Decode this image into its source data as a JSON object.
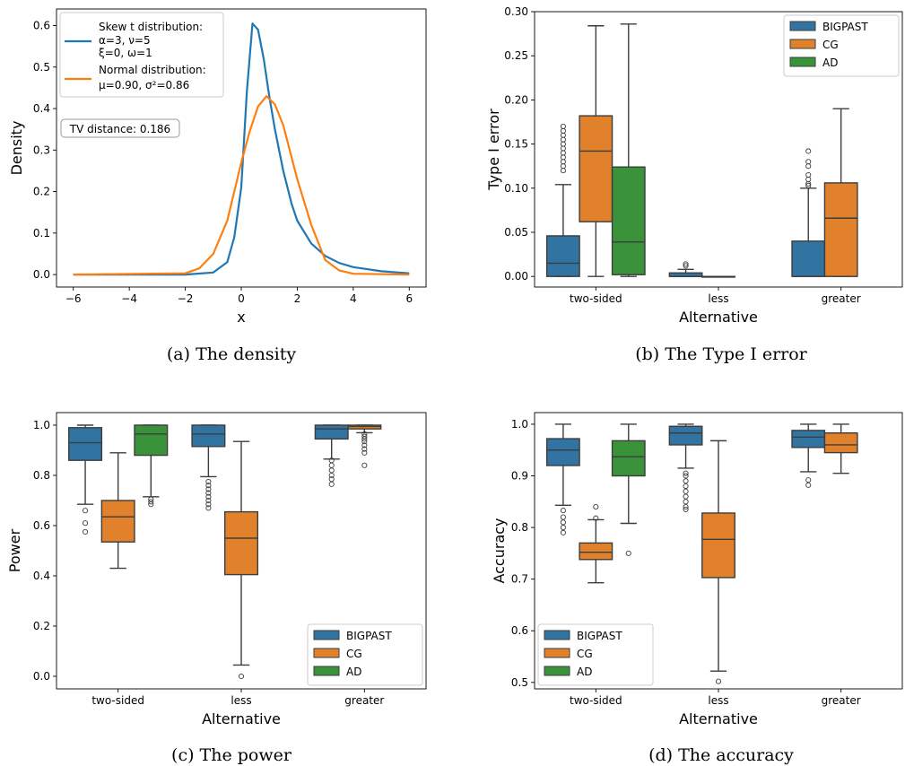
{
  "colors": {
    "blue": "#1f77b4",
    "orange": "#ff7f0e",
    "box_blue": "#3274a1",
    "box_orange": "#e1812c",
    "box_green": "#3a923a",
    "edge": "#3d3d3d"
  },
  "captions": [
    "(a) The density",
    "(b) The Type I error",
    "(c) The power",
    "(d) The accuracy"
  ],
  "chart_data": [
    {
      "type": "line",
      "xlabel": "x",
      "ylabel": "Density",
      "xlim": [
        -6.6,
        6.6
      ],
      "ylim": [
        -0.03,
        0.64
      ],
      "xticks": [
        -6,
        -4,
        -2,
        0,
        2,
        4,
        6
      ],
      "xtick_labels": [
        "−6",
        "−4",
        "−2",
        "0",
        "2",
        "4",
        "6"
      ],
      "yticks": [
        0.0,
        0.1,
        0.2,
        0.3,
        0.4,
        0.5,
        0.6
      ],
      "ytick_labels": [
        "0.0",
        "0.1",
        "0.2",
        "0.3",
        "0.4",
        "0.5",
        "0.6"
      ],
      "legend_position": "top-left",
      "annotation": "TV distance: 0.186",
      "series": [
        {
          "legend_lines": [
            "Skew t distribution:",
            "α=3,  ν=5",
            "ξ=0,  ω=1"
          ],
          "color": "#1f77b4",
          "x": [
            -6,
            -2,
            -1,
            -0.5,
            -0.25,
            0,
            0.2,
            0.4,
            0.6,
            0.8,
            1.0,
            1.2,
            1.5,
            1.8,
            2.0,
            2.5,
            3.0,
            3.5,
            4.0,
            5.0,
            6.0
          ],
          "y": [
            0.0,
            0.0,
            0.005,
            0.03,
            0.09,
            0.21,
            0.44,
            0.605,
            0.59,
            0.52,
            0.43,
            0.35,
            0.25,
            0.17,
            0.13,
            0.075,
            0.045,
            0.028,
            0.018,
            0.008,
            0.003
          ]
        },
        {
          "legend_lines": [
            "Normal distribution:",
            "μ=0.90, σ²=0.86"
          ],
          "color": "#ff7f0e",
          "x": [
            -6,
            -2,
            -1.5,
            -1,
            -0.5,
            0,
            0.3,
            0.6,
            0.9,
            1.2,
            1.5,
            2.0,
            2.5,
            3.0,
            3.5,
            4.0,
            6.0
          ],
          "y": [
            0.0,
            0.003,
            0.015,
            0.05,
            0.13,
            0.27,
            0.345,
            0.405,
            0.43,
            0.41,
            0.36,
            0.23,
            0.12,
            0.035,
            0.01,
            0.002,
            0.0
          ]
        }
      ]
    },
    {
      "type": "box",
      "xlabel": "Alternative",
      "ylabel": "Type I error",
      "categories": [
        "two-sided",
        "less",
        "greater"
      ],
      "ylim": [
        -0.012,
        0.3
      ],
      "yticks": [
        0.0,
        0.05,
        0.1,
        0.15,
        0.2,
        0.25,
        0.3
      ],
      "ytick_labels": [
        "0.00",
        "0.05",
        "0.10",
        "0.15",
        "0.20",
        "0.25",
        "0.30"
      ],
      "legend_position": "top-right",
      "series": [
        {
          "name": "BIGPAST",
          "color": "#3274a1",
          "boxes": [
            {
              "whislo": 0.0,
              "q1": 0.0,
              "med": 0.015,
              "q3": 0.046,
              "whishi": 0.104,
              "fliers": [
                0.12,
                0.125,
                0.13,
                0.135,
                0.14,
                0.145,
                0.15,
                0.155,
                0.16,
                0.165,
                0.17
              ]
            },
            {
              "whislo": 0.0,
              "q1": 0.0,
              "med": 0.0,
              "q3": 0.004,
              "whishi": 0.008,
              "fliers": [
                0.012,
                0.014
              ]
            },
            {
              "whislo": 0.0,
              "q1": 0.0,
              "med": 0.0,
              "q3": 0.04,
              "whishi": 0.1,
              "fliers": [
                0.103,
                0.105,
                0.11,
                0.115,
                0.125,
                0.13,
                0.142
              ]
            }
          ]
        },
        {
          "name": "CG",
          "color": "#e1812c",
          "boxes": [
            {
              "whislo": 0.0,
              "q1": 0.062,
              "med": 0.142,
              "q3": 0.182,
              "whishi": 0.284,
              "fliers": []
            },
            {
              "whislo": 0.0,
              "q1": 0.0,
              "med": 0.0,
              "q3": 0.0,
              "whishi": 0.0,
              "fliers": []
            },
            {
              "whislo": 0.0,
              "q1": 0.0,
              "med": 0.066,
              "q3": 0.106,
              "whishi": 0.19,
              "fliers": []
            }
          ]
        },
        {
          "name": "AD",
          "color": "#3a923a",
          "boxes": [
            {
              "whislo": 0.0,
              "q1": 0.002,
              "med": 0.039,
              "q3": 0.124,
              "whishi": 0.286,
              "fliers": []
            },
            null,
            null
          ]
        }
      ]
    },
    {
      "type": "box",
      "xlabel": "Alternative",
      "ylabel": "Power",
      "categories": [
        "two-sided",
        "less",
        "greater"
      ],
      "ylim": [
        -0.05,
        1.05
      ],
      "yticks": [
        0.0,
        0.2,
        0.4,
        0.6,
        0.8,
        1.0
      ],
      "ytick_labels": [
        "0.0",
        "0.2",
        "0.4",
        "0.6",
        "0.8",
        "1.0"
      ],
      "legend_position": "bottom-right",
      "series": [
        {
          "name": "BIGPAST",
          "color": "#3274a1",
          "boxes": [
            {
              "whislo": 0.685,
              "q1": 0.86,
              "med": 0.93,
              "q3": 0.99,
              "whishi": 1.0,
              "fliers": [
                0.575,
                0.61,
                0.66
              ]
            },
            {
              "whislo": 0.795,
              "q1": 0.915,
              "med": 0.965,
              "q3": 1.0,
              "whishi": 1.0,
              "fliers": [
                0.67,
                0.685,
                0.7,
                0.715,
                0.73,
                0.745,
                0.76,
                0.775
              ]
            },
            {
              "whislo": 0.865,
              "q1": 0.945,
              "med": 0.985,
              "q3": 1.0,
              "whishi": 1.0,
              "fliers": [
                0.765,
                0.785,
                0.8,
                0.82,
                0.84,
                0.86
              ]
            }
          ]
        },
        {
          "name": "CG",
          "color": "#e1812c",
          "boxes": [
            {
              "whislo": 0.43,
              "q1": 0.535,
              "med": 0.635,
              "q3": 0.7,
              "whishi": 0.89,
              "fliers": []
            },
            {
              "whislo": 0.045,
              "q1": 0.405,
              "med": 0.55,
              "q3": 0.655,
              "whishi": 0.935,
              "fliers": [
                0.0
              ]
            },
            {
              "whislo": 0.97,
              "q1": 0.985,
              "med": 0.995,
              "q3": 1.0,
              "whishi": 1.0,
              "fliers": [
                0.84,
                0.89,
                0.905,
                0.92,
                0.935,
                0.945,
                0.955,
                0.965
              ]
            }
          ]
        },
        {
          "name": "AD",
          "color": "#3a923a",
          "boxes": [
            {
              "whislo": 0.715,
              "q1": 0.88,
              "med": 0.965,
              "q3": 1.0,
              "whishi": 1.0,
              "fliers": [
                0.685,
                0.695,
                0.705
              ]
            },
            null,
            null
          ]
        }
      ]
    },
    {
      "type": "box",
      "xlabel": "Alternative",
      "ylabel": "Accuracy",
      "categories": [
        "two-sided",
        "less",
        "greater"
      ],
      "ylim": [
        0.4875,
        1.0225
      ],
      "yticks": [
        0.5,
        0.6,
        0.7,
        0.8,
        0.9,
        1.0
      ],
      "ytick_labels": [
        "0.5",
        "0.6",
        "0.7",
        "0.8",
        "0.9",
        "1.0"
      ],
      "legend_position": "bottom-left",
      "series": [
        {
          "name": "BIGPAST",
          "color": "#3274a1",
          "boxes": [
            {
              "whislo": 0.843,
              "q1": 0.92,
              "med": 0.95,
              "q3": 0.972,
              "whishi": 1.0,
              "fliers": [
                0.79,
                0.8,
                0.81,
                0.82,
                0.833
              ]
            },
            {
              "whislo": 0.915,
              "q1": 0.96,
              "med": 0.983,
              "q3": 0.996,
              "whishi": 1.0,
              "fliers": [
                0.835,
                0.84,
                0.85,
                0.86,
                0.87,
                0.88,
                0.89,
                0.9,
                0.905
              ]
            },
            {
              "whislo": 0.908,
              "q1": 0.955,
              "med": 0.975,
              "q3": 0.988,
              "whishi": 1.0,
              "fliers": [
                0.882,
                0.892
              ]
            }
          ]
        },
        {
          "name": "CG",
          "color": "#e1812c",
          "boxes": [
            {
              "whislo": 0.693,
              "q1": 0.738,
              "med": 0.752,
              "q3": 0.77,
              "whishi": 0.815,
              "fliers": [
                0.818,
                0.84
              ]
            },
            {
              "whislo": 0.522,
              "q1": 0.703,
              "med": 0.777,
              "q3": 0.828,
              "whishi": 0.968,
              "fliers": [
                0.502
              ]
            },
            {
              "whislo": 0.905,
              "q1": 0.945,
              "med": 0.96,
              "q3": 0.983,
              "whishi": 1.0,
              "fliers": []
            }
          ]
        },
        {
          "name": "AD",
          "color": "#3a923a",
          "boxes": [
            {
              "whislo": 0.808,
              "q1": 0.9,
              "med": 0.937,
              "q3": 0.968,
              "whishi": 1.0,
              "fliers": [
                0.75
              ]
            },
            null,
            null
          ]
        }
      ]
    }
  ]
}
